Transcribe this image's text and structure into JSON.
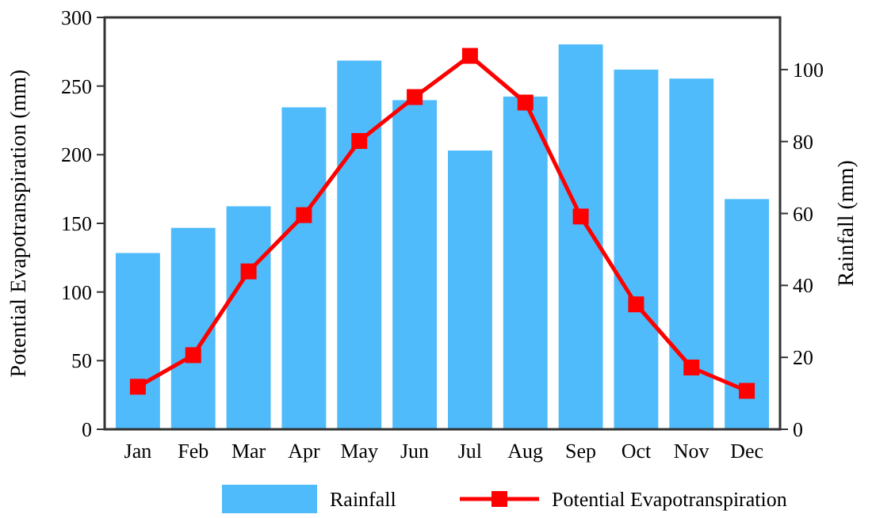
{
  "chart_data": {
    "type": "bar",
    "ylabel": "Potential Evapotranspiration (mm)",
    "y2label": "Rainfall (mm)",
    "categories": [
      "Jan",
      "Feb",
      "Mar",
      "Apr",
      "May",
      "Jun",
      "Jul",
      "Aug",
      "Sep",
      "Oct",
      "Nov",
      "Dec"
    ],
    "series": [
      {
        "name": "Rainfall",
        "axis": "y2",
        "color": "#4fbbfb",
        "values": [
          49,
          56,
          62,
          89.5,
          102.5,
          91.5,
          77.5,
          92.5,
          107,
          100,
          97.5,
          64
        ]
      },
      {
        "name": "Potential Evapotranspiration",
        "type": "line",
        "axis": "y",
        "color": "#ff0000",
        "marker": "square",
        "values": [
          31,
          54,
          115,
          156,
          210,
          242,
          272,
          238,
          155,
          91,
          45,
          28
        ]
      }
    ],
    "ylim": [
      0,
      300
    ],
    "yticks": [
      0,
      50,
      100,
      150,
      200,
      250,
      300
    ],
    "y2lim": [
      0,
      114.5
    ],
    "y2ticks": [
      0,
      20,
      40,
      60,
      80,
      100
    ],
    "grid": false,
    "legend": "bottom"
  }
}
